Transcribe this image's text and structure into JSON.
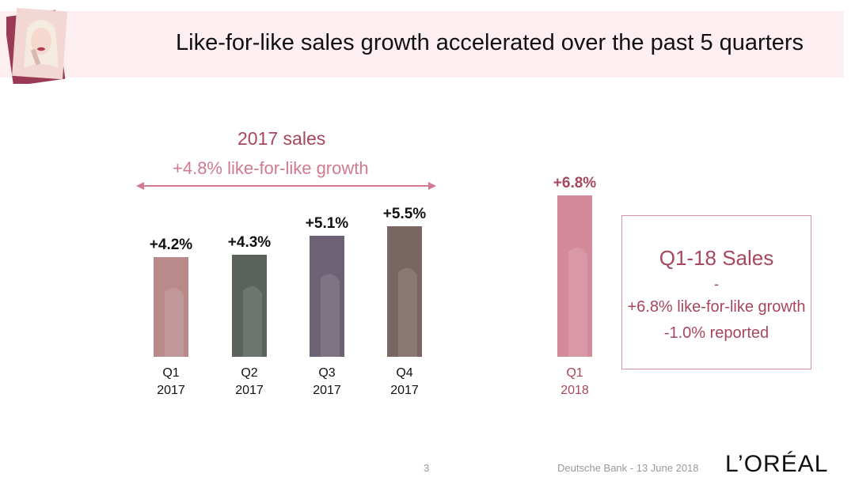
{
  "header": {
    "title": "Like-for-like sales growth accelerated over the past 5 quarters"
  },
  "section": {
    "title": "2017 sales",
    "subtitle": "+4.8% like-for-like growth"
  },
  "q1_box": {
    "title": "Q1-18 Sales",
    "separator": "-",
    "line1": "+6.8% like-for-like growth",
    "line2": "-1.0% reported"
  },
  "footer": {
    "page": "3",
    "text": "Deutsche Bank - 13 June 2018",
    "logo": "L’ORÉAL"
  },
  "colors": {
    "accent": "#a8465d",
    "accent_light": "#d27a90",
    "title_band": "#fdeef2"
  },
  "chart_data": {
    "type": "bar",
    "series": [
      {
        "values": [
          4.2,
          4.3,
          5.1,
          5.5,
          6.8
        ],
        "data_labels": [
          "+4.2%",
          "+4.3%",
          "+5.1%",
          "+5.5%",
          "+6.8%"
        ],
        "categories": [
          [
            "Q1",
            "2017"
          ],
          [
            "Q2",
            "2017"
          ],
          [
            "Q3",
            "2017"
          ],
          [
            "Q4",
            "2017"
          ],
          [
            "Q1",
            "2018"
          ]
        ],
        "colors": [
          "#b98a8a",
          "#5b625b",
          "#6d6273",
          "#7a6660",
          "#d48a9b"
        ],
        "label_colors": [
          "#111111",
          "#111111",
          "#111111",
          "#111111",
          "#a8465d"
        ]
      }
    ],
    "ylim": [
      0,
      7.2
    ],
    "grid": false
  }
}
